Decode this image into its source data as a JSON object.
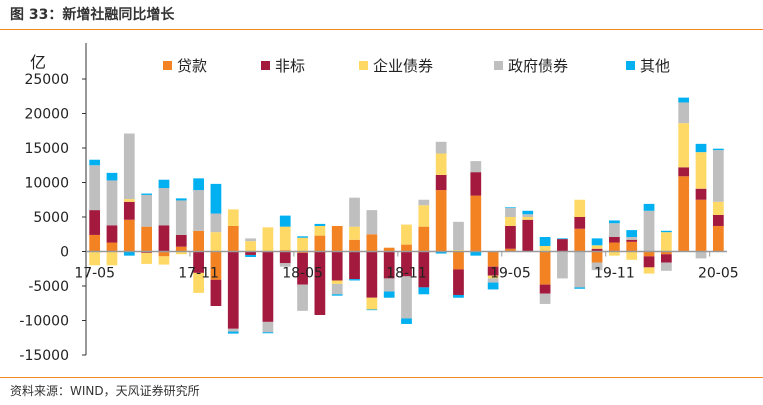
{
  "title": "图 33：新增社融同比增长",
  "source": "资料来源：WIND，天风证券研究所",
  "chart_data": {
    "type": "bar",
    "stacked": true,
    "ylabel": "亿",
    "ylim": [
      -15000,
      25000
    ],
    "yticks": [
      -15000,
      -10000,
      -5000,
      0,
      5000,
      10000,
      15000,
      20000,
      25000
    ],
    "legend_position": "top",
    "grid": false,
    "categories": [
      "17-05",
      "17-06",
      "17-07",
      "17-08",
      "17-09",
      "17-10",
      "17-11",
      "17-12",
      "18-01",
      "18-02",
      "18-03",
      "18-04",
      "18-05",
      "18-06",
      "18-07",
      "18-08",
      "18-09",
      "18-10",
      "18-11",
      "18-12",
      "19-01",
      "19-02",
      "19-03",
      "19-04",
      "19-05",
      "19-06",
      "19-07",
      "19-08",
      "19-09",
      "19-10",
      "19-11",
      "19-12",
      "20-01",
      "20-02",
      "20-03",
      "20-04",
      "20-05"
    ],
    "tick_labels": [
      "17-05",
      "17-11",
      "18-05",
      "18-11",
      "19-05",
      "19-11",
      "20-05"
    ],
    "series": [
      {
        "name": "贷款",
        "color": "#f28222",
        "values": [
          2400,
          1300,
          4600,
          3600,
          -700,
          700,
          3000,
          -4100,
          3700,
          0,
          0,
          200,
          -200,
          2300,
          3700,
          1700,
          2500,
          550,
          1000,
          3600,
          8900,
          -2600,
          8100,
          -2200,
          400,
          0,
          -4800,
          0,
          3300,
          -1600,
          1300,
          1400,
          -700,
          -400,
          10900,
          7500,
          3700
        ]
      },
      {
        "name": "非标",
        "color": "#a31a3e",
        "values": [
          3600,
          2500,
          2600,
          -200,
          3800,
          1700,
          -3100,
          -3800,
          -11200,
          -500,
          -10200,
          -1700,
          -4600,
          -9200,
          -4200,
          -4000,
          -6700,
          -3900,
          -3600,
          -5200,
          2200,
          -3700,
          3400,
          -1300,
          3300,
          4600,
          -1300,
          1800,
          1700,
          400,
          800,
          300,
          -1600,
          -1200,
          1300,
          1600,
          1600
        ]
      },
      {
        "name": "企业债券",
        "color": "#ffd966",
        "values": [
          -2000,
          -2000,
          400,
          -1600,
          -1200,
          -400,
          -2900,
          2800,
          2400,
          1500,
          3500,
          3400,
          2000,
          1400,
          -500,
          1900,
          -1700,
          0,
          2900,
          3100,
          3100,
          200,
          0,
          -400,
          1300,
          400,
          800,
          -100,
          2500,
          500,
          -600,
          -1200,
          -900,
          2800,
          6400,
          5300,
          1900
        ]
      },
      {
        "name": "政府债券",
        "color": "#bfbfbf",
        "values": [
          6500,
          6500,
          9500,
          4600,
          5400,
          5000,
          5900,
          2700,
          -400,
          400,
          -1500,
          -500,
          -3800,
          0,
          -1500,
          4200,
          3500,
          -1900,
          -6100,
          800,
          1700,
          4100,
          1600,
          -600,
          1300,
          400,
          -1500,
          -3800,
          -5200,
          -1100,
          2000,
          400,
          5900,
          -1200,
          3000,
          -1000,
          7500
        ]
      },
      {
        "name": "其他",
        "color": "#00b0f0",
        "values": [
          800,
          1100,
          -600,
          200,
          1200,
          300,
          1700,
          4300,
          -300,
          -300,
          -150,
          1600,
          200,
          300,
          -200,
          -200,
          -100,
          -900,
          -800,
          -1000,
          -300,
          -400,
          -600,
          -1000,
          100,
          500,
          1300,
          100,
          -200,
          1000,
          400,
          1000,
          1000,
          200,
          700,
          1200,
          200
        ]
      }
    ]
  }
}
